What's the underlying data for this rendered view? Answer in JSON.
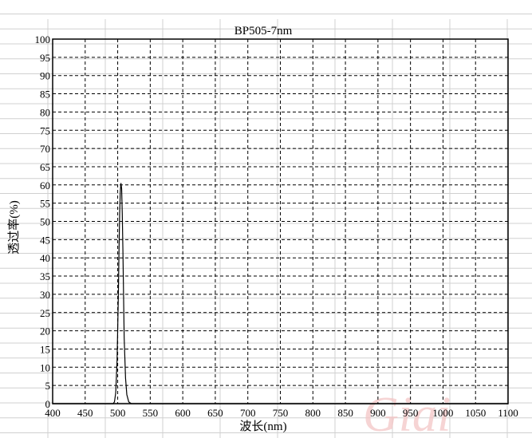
{
  "chart_data": {
    "type": "line",
    "title": "BP505-7nm",
    "xlabel": "波长(nm)",
    "ylabel": "透过率(%)",
    "xlim": [
      400,
      1100
    ],
    "ylim": [
      0,
      100
    ],
    "xticks": [
      400,
      450,
      500,
      550,
      600,
      650,
      700,
      750,
      800,
      850,
      900,
      950,
      1000,
      1050,
      1100
    ],
    "yticks": [
      0,
      5,
      10,
      15,
      20,
      25,
      30,
      35,
      40,
      45,
      50,
      55,
      60,
      65,
      70,
      75,
      80,
      85,
      90,
      95,
      100
    ],
    "grid": true,
    "series": [
      {
        "x": [
          400,
          493,
          495,
          497,
          499,
          501,
          502,
          503,
          504,
          505,
          506,
          507,
          508,
          509,
          510,
          512,
          514,
          517,
          521,
          1100
        ],
        "y": [
          0,
          0,
          0.5,
          3,
          12,
          30,
          42,
          52,
          58,
          60.5,
          59,
          52,
          42,
          30,
          18,
          7,
          2.5,
          0.5,
          0,
          0
        ],
        "color": "#000000"
      }
    ]
  },
  "watermark": "Giai"
}
